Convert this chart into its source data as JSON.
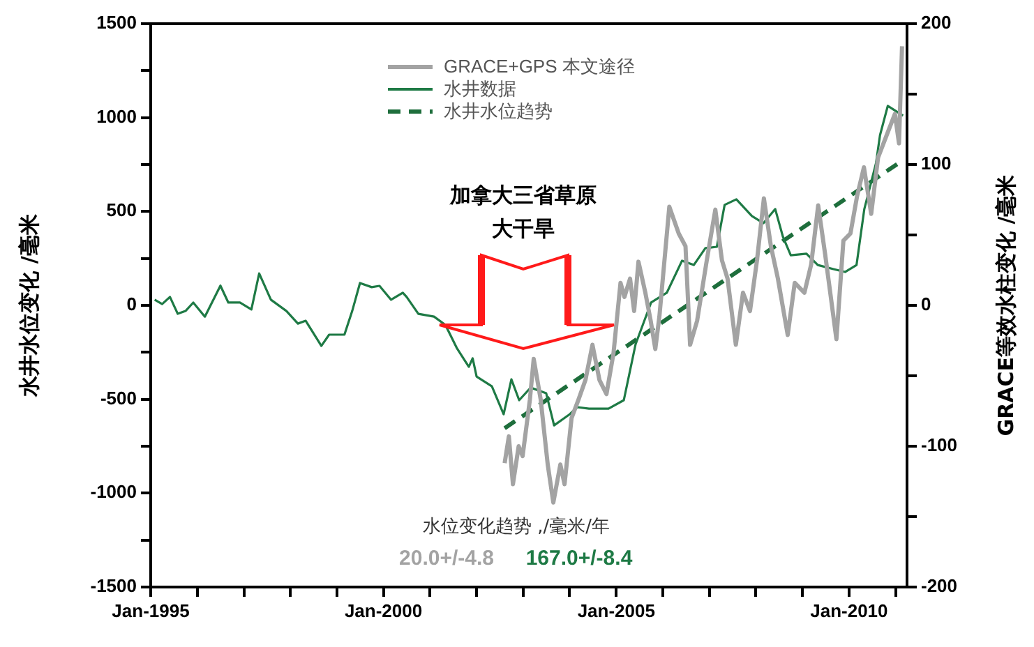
{
  "chart_data": {
    "type": "line",
    "ylabel": "水井水位变化 /毫米",
    "y2label": "GRACE等效水柱变化 /毫米",
    "xlim": [
      "1995-01",
      "2011-04"
    ],
    "xticks": [
      {
        "value": "1995-01",
        "label": "Jan-1995"
      },
      {
        "value": "1996-01",
        "label": null
      },
      {
        "value": "1997-01",
        "label": null
      },
      {
        "value": "1998-01",
        "label": null
      },
      {
        "value": "1999-01",
        "label": null
      },
      {
        "value": "2000-01",
        "label": "Jan-2000"
      },
      {
        "value": "2001-01",
        "label": null
      },
      {
        "value": "2002-01",
        "label": null
      },
      {
        "value": "2003-01",
        "label": null
      },
      {
        "value": "2004-01",
        "label": null
      },
      {
        "value": "2005-01",
        "label": "Jan-2005"
      },
      {
        "value": "2006-01",
        "label": null
      },
      {
        "value": "2007-01",
        "label": null
      },
      {
        "value": "2008-01",
        "label": null
      },
      {
        "value": "2009-01",
        "label": null
      },
      {
        "value": "2010-01",
        "label": "Jan-2010"
      },
      {
        "value": "2011-01",
        "label": null
      }
    ],
    "ylim": [
      -1500,
      1500
    ],
    "yticks": [
      -1500,
      {
        "value": -1250,
        "label": null
      },
      -1000,
      {
        "value": -750,
        "label": null
      },
      -500,
      {
        "value": -250,
        "label": null
      },
      0,
      {
        "value": 250,
        "label": null
      },
      500,
      {
        "value": 750,
        "label": null
      },
      1000,
      {
        "value": 1250,
        "label": null
      },
      1500
    ],
    "y2lim": [
      -200,
      200
    ],
    "y2ticks": [
      -200,
      {
        "value": -150,
        "label": null
      },
      -100,
      {
        "value": -50,
        "label": null
      },
      0,
      {
        "value": 50,
        "label": null
      },
      100,
      {
        "value": 150,
        "label": null
      },
      200
    ],
    "grid": false,
    "legend": "top",
    "series": [
      {
        "name": "GRACE+GPS 本文途径",
        "color": "#a3a3a3",
        "axis": "y2",
        "x": [
          "2002-08-09",
          "2002-09-11",
          "2002-10-13",
          "2002-11-27",
          "2002-12-28",
          "2003-02-23",
          "2003-03-25",
          "2003-05-19",
          "2003-07-13",
          "2003-08-26",
          "2003-10-20",
          "2003-11-22",
          "2004-01-16",
          "2004-03-10",
          "2004-05-04",
          "2004-06-28",
          "2004-08-22",
          "2004-10-16",
          "2004-12-10",
          "2005-02-03",
          "2005-03-06",
          "2005-04-19",
          "2005-05-21",
          "2005-06-24",
          "2005-08-17",
          "2005-09-28",
          "2005-11-03",
          "2005-12-05",
          "2006-02-21",
          "2006-05-06",
          "2006-06-28",
          "2006-08-03",
          "2006-09-27",
          "2006-12-12",
          "2007-02-17",
          "2007-04-10",
          "2007-05-24",
          "2007-07-28",
          "2007-09-22",
          "2007-11-16",
          "2008-01-10",
          "2008-03-04",
          "2008-04-28",
          "2008-06-22",
          "2008-09-07",
          "2008-11-01",
          "2009-01-16",
          "2009-03-10",
          "2009-05-04",
          "2009-06-28",
          "2009-09-24",
          "2009-11-18",
          "2010-01-12",
          "2010-03-06",
          "2010-04-28",
          "2010-06-24",
          "2010-08-17",
          "2010-12-27",
          "2011-01-28",
          "2011-02-21"
        ],
        "values": [
          -112,
          -93,
          -127,
          -100,
          -107,
          -67,
          -38,
          -67,
          -113,
          -140,
          -113,
          -127,
          -80,
          -67,
          -53,
          -28,
          -53,
          -63,
          -34,
          16,
          6,
          19,
          -4,
          31,
          9,
          -11,
          -31,
          -8,
          70,
          51,
          42,
          -28,
          -11,
          32,
          68,
          32,
          19,
          -28,
          9,
          -4,
          32,
          76,
          42,
          19,
          -21,
          16,
          9,
          29,
          71,
          36,
          -24,
          46,
          51,
          78,
          98,
          65,
          105,
          136,
          115,
          184
        ]
      },
      {
        "name": "水井数据",
        "color": "#1e7a45",
        "x": [
          "1995-02",
          "1995-04",
          "1995-06",
          "1995-08",
          "1995-10",
          "1995-12",
          "1996-03",
          "1996-07",
          "1996-09",
          "1996-12",
          "1997-03",
          "1997-05",
          "1997-08",
          "1997-12",
          "1998-03",
          "1998-05",
          "1998-09",
          "1998-11",
          "1999-03",
          "1999-05",
          "1999-07",
          "1999-10",
          "1999-12",
          "2000-03",
          "2000-06",
          "2000-07",
          "2000-10",
          "2001-02",
          "2001-05",
          "2001-08",
          "2001-11",
          "2001-12",
          "2002-01",
          "2002-05",
          "2002-08",
          "2002-10",
          "2002-12",
          "2003-03",
          "2003-07",
          "2003-09",
          "2004-01",
          "2004-03",
          "2004-06",
          "2004-11",
          "2005-03",
          "2005-06",
          "2005-10",
          "2006-02",
          "2006-06",
          "2006-09",
          "2006-12",
          "2007-03",
          "2007-05",
          "2007-08",
          "2007-12",
          "2008-03",
          "2008-06",
          "2008-08",
          "2008-10",
          "2009-02",
          "2009-05",
          "2009-09",
          "2009-12",
          "2010-03",
          "2010-05",
          "2010-08",
          "2010-09",
          "2010-11",
          "2011-03"
        ],
        "values": [
          30,
          7,
          45,
          -45,
          -30,
          15,
          -60,
          105,
          15,
          15,
          -22,
          170,
          30,
          -30,
          -97,
          -82,
          -216,
          -156,
          -156,
          -30,
          119,
          97,
          104,
          30,
          67,
          45,
          -45,
          -60,
          -104,
          -230,
          -327,
          -282,
          -379,
          -431,
          -580,
          -394,
          -505,
          -438,
          -468,
          -639,
          -580,
          -542,
          -550,
          -550,
          -505,
          -208,
          15,
          67,
          238,
          215,
          305,
          312,
          535,
          565,
          476,
          438,
          513,
          364,
          267,
          275,
          215,
          193,
          178,
          215,
          513,
          758,
          906,
          1062,
          1010
        ]
      },
      {
        "name": "水井水位趋势",
        "color": "#1e6e3c",
        "line_style": "dashed",
        "x": [
          "2002-08-09",
          "2011-03"
        ],
        "values": [
          -654,
          773
        ]
      }
    ],
    "annotations": [
      "加拿大三省草原",
      "大干旱",
      "水位变化趋势 ,/毫米/年",
      "20.0+/-4.8",
      "167.0+/-8.4"
    ]
  }
}
